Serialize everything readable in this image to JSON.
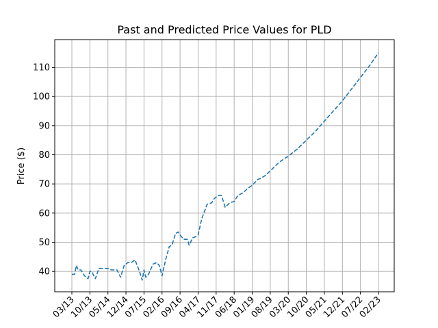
{
  "chart_data": {
    "type": "line",
    "title": "Past and Predicted Price Values for PLD",
    "xlabel": "",
    "ylabel": "Price ($)",
    "x_tick_labels": [
      "03/13",
      "10/13",
      "05/14",
      "12/14",
      "07/15",
      "02/16",
      "09/16",
      "04/17",
      "11/17",
      "06/18",
      "01/19",
      "08/19",
      "03/20",
      "10/20",
      "05/21",
      "12/21",
      "07/22",
      "02/23"
    ],
    "y_ticks": [
      40,
      50,
      60,
      70,
      80,
      90,
      100,
      110
    ],
    "ylim": [
      33,
      119.5
    ],
    "grid": true,
    "line_color": "#1f77b4",
    "line_style": "dashed",
    "series": [
      {
        "x": [
          0,
          0.15,
          0.25,
          0.35,
          0.5,
          0.7,
          0.9,
          1.0,
          1.1,
          1.3,
          1.5,
          1.7,
          2.0,
          2.2,
          2.5,
          2.7,
          2.9,
          3.0,
          3.1,
          3.3,
          3.5,
          3.75,
          3.9,
          4.0,
          4.1,
          4.25,
          4.5,
          4.7,
          4.85,
          5.0,
          5.2,
          5.4,
          5.55,
          5.75,
          5.9,
          6.0,
          6.2,
          6.4,
          6.5,
          6.7,
          6.9,
          7.0,
          7.2,
          7.5,
          7.75,
          7.9,
          8.1,
          8.3,
          8.5,
          8.75,
          9.0,
          9.2,
          9.5,
          9.75,
          10.0,
          10.3,
          10.5,
          10.75,
          11.0,
          11.5,
          12.0,
          12.5,
          13.0,
          13.5,
          14.0,
          14.5,
          15.0,
          15.5,
          16.0,
          16.5,
          17.0
        ],
        "y": [
          39,
          39,
          42,
          40.5,
          40.5,
          38.5,
          37.5,
          40,
          40,
          37.5,
          41,
          41,
          41,
          40.5,
          40.5,
          38,
          42,
          42.5,
          43,
          43,
          44,
          40,
          37,
          40.5,
          38,
          39,
          42.5,
          43,
          42,
          38.5,
          44,
          48.5,
          49,
          53,
          53.5,
          52.5,
          51,
          51,
          49,
          51.5,
          52,
          52.5,
          58,
          63,
          63.5,
          65,
          66,
          66,
          62,
          63.5,
          64,
          66,
          67,
          68.5,
          69.5,
          71.5,
          72,
          73,
          74.5,
          77.5,
          79.5,
          82,
          85,
          88,
          91.5,
          95,
          98.5,
          102.5,
          106.5,
          110.5,
          115
        ]
      }
    ]
  }
}
